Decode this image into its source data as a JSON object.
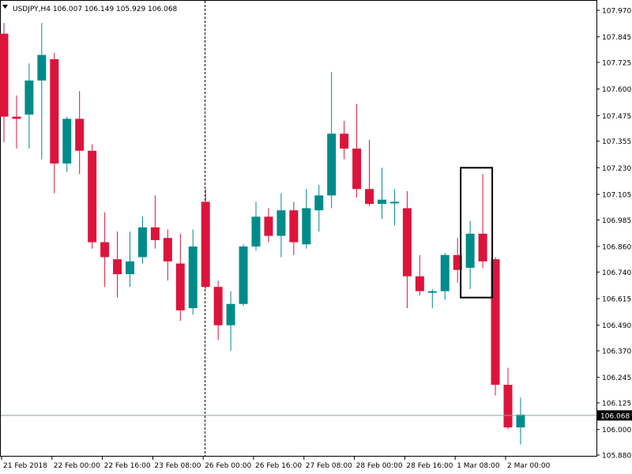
{
  "symbol_header": {
    "text": "USDJPY,H4  106.007 106.149 105.929 106.068",
    "menu_icon": "triangle-down-icon"
  },
  "price_label": "106.068",
  "chart_data": {
    "type": "candlestick",
    "timeframe": "H4",
    "ylim": [
      105.87,
      107.99
    ],
    "y_ticks": [
      "107.970",
      "107.845",
      "107.725",
      "107.600",
      "107.475",
      "107.355",
      "107.230",
      "107.105",
      "106.985",
      "106.860",
      "106.740",
      "106.615",
      "106.490",
      "106.370",
      "106.245",
      "106.125",
      "106.000",
      "105.880"
    ],
    "x_ticks": [
      {
        "label": "21 Feb 2018",
        "index": 0
      },
      {
        "label": "22 Feb 00:00",
        "index": 4
      },
      {
        "label": "22 Feb 16:00",
        "index": 8
      },
      {
        "label": "23 Feb 08:00",
        "index": 12
      },
      {
        "label": "26 Feb 00:00",
        "index": 16
      },
      {
        "label": "26 Feb 16:00",
        "index": 20
      },
      {
        "label": "27 Feb 08:00",
        "index": 24
      },
      {
        "label": "28 Feb 00:00",
        "index": 28
      },
      {
        "label": "28 Feb 16:00",
        "index": 32
      },
      {
        "label": "1 Mar 08:00",
        "index": 36
      },
      {
        "label": "2 Mar 00:00",
        "index": 40
      }
    ],
    "candles": [
      {
        "o": 107.86,
        "h": 107.91,
        "l": 107.35,
        "c": 107.47
      },
      {
        "o": 107.47,
        "h": 107.57,
        "l": 107.32,
        "c": 107.46
      },
      {
        "o": 107.48,
        "h": 107.72,
        "l": 107.32,
        "c": 107.64
      },
      {
        "o": 107.64,
        "h": 107.91,
        "l": 107.27,
        "c": 107.76
      },
      {
        "o": 107.74,
        "h": 107.77,
        "l": 107.11,
        "c": 107.25
      },
      {
        "o": 107.25,
        "h": 107.47,
        "l": 107.21,
        "c": 107.46
      },
      {
        "o": 107.46,
        "h": 107.59,
        "l": 107.2,
        "c": 107.31
      },
      {
        "o": 107.31,
        "h": 107.34,
        "l": 106.85,
        "c": 106.88
      },
      {
        "o": 106.88,
        "h": 107.02,
        "l": 106.67,
        "c": 106.81
      },
      {
        "o": 106.8,
        "h": 106.93,
        "l": 106.62,
        "c": 106.73
      },
      {
        "o": 106.73,
        "h": 106.93,
        "l": 106.67,
        "c": 106.79
      },
      {
        "o": 106.81,
        "h": 107.0,
        "l": 106.78,
        "c": 106.95
      },
      {
        "o": 106.95,
        "h": 107.1,
        "l": 106.85,
        "c": 106.89
      },
      {
        "o": 106.9,
        "h": 106.94,
        "l": 106.7,
        "c": 106.79
      },
      {
        "o": 106.78,
        "h": 106.92,
        "l": 106.51,
        "c": 106.56
      },
      {
        "o": 106.57,
        "h": 106.94,
        "l": 106.54,
        "c": 106.86
      },
      {
        "o": 107.07,
        "h": 107.13,
        "l": 106.66,
        "c": 106.67
      },
      {
        "o": 106.67,
        "h": 106.7,
        "l": 106.42,
        "c": 106.49
      },
      {
        "o": 106.49,
        "h": 106.65,
        "l": 106.37,
        "c": 106.59
      },
      {
        "o": 106.59,
        "h": 106.87,
        "l": 106.58,
        "c": 106.86
      },
      {
        "o": 106.86,
        "h": 107.07,
        "l": 106.84,
        "c": 107.0
      },
      {
        "o": 107.0,
        "h": 107.04,
        "l": 106.88,
        "c": 106.91
      },
      {
        "o": 106.91,
        "h": 107.11,
        "l": 106.81,
        "c": 107.03
      },
      {
        "o": 107.03,
        "h": 107.07,
        "l": 106.82,
        "c": 106.88
      },
      {
        "o": 106.87,
        "h": 107.13,
        "l": 106.85,
        "c": 107.04
      },
      {
        "o": 107.03,
        "h": 107.15,
        "l": 106.93,
        "c": 107.1
      },
      {
        "o": 107.1,
        "h": 107.68,
        "l": 107.04,
        "c": 107.39
      },
      {
        "o": 107.39,
        "h": 107.45,
        "l": 107.27,
        "c": 107.32
      },
      {
        "o": 107.32,
        "h": 107.53,
        "l": 107.09,
        "c": 107.13
      },
      {
        "o": 107.13,
        "h": 107.36,
        "l": 107.05,
        "c": 107.06
      },
      {
        "o": 107.06,
        "h": 107.23,
        "l": 106.99,
        "c": 107.08
      },
      {
        "o": 107.07,
        "h": 107.13,
        "l": 106.96,
        "c": 107.07
      },
      {
        "o": 107.04,
        "h": 107.12,
        "l": 106.57,
        "c": 106.72
      },
      {
        "o": 106.72,
        "h": 106.82,
        "l": 106.63,
        "c": 106.65
      },
      {
        "o": 106.65,
        "h": 106.66,
        "l": 106.57,
        "c": 106.65
      },
      {
        "o": 106.65,
        "h": 106.83,
        "l": 106.61,
        "c": 106.82
      },
      {
        "o": 106.82,
        "h": 106.9,
        "l": 106.69,
        "c": 106.75
      },
      {
        "o": 106.76,
        "h": 106.98,
        "l": 106.66,
        "c": 106.92
      },
      {
        "o": 106.92,
        "h": 107.2,
        "l": 106.76,
        "c": 106.79
      },
      {
        "o": 106.8,
        "h": 106.81,
        "l": 106.16,
        "c": 106.21
      },
      {
        "o": 106.21,
        "h": 106.29,
        "l": 106.0,
        "c": 106.01
      },
      {
        "o": 106.01,
        "h": 106.15,
        "l": 105.93,
        "c": 106.07
      }
    ],
    "current_price": 106.068,
    "colors": {
      "bull": "#008b8b",
      "bear": "#dc143c",
      "price_line": "#7fa6a6",
      "axis": "#000000",
      "vline": "#000000",
      "box": "#000000",
      "background": "#ffffff"
    }
  }
}
